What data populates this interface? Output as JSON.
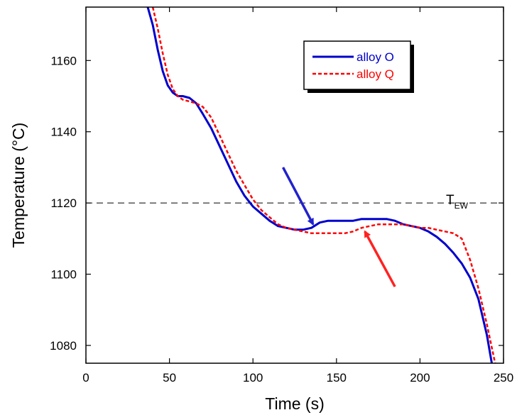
{
  "chart_data": {
    "type": "line",
    "title": "",
    "xlabel": "Time (s)",
    "ylabel": "Temperature (°C)",
    "xlim": [
      0,
      250
    ],
    "ylim": [
      1075,
      1175
    ],
    "xticks": [
      0,
      50,
      100,
      150,
      200,
      250
    ],
    "yticks": [
      1080,
      1100,
      1120,
      1140,
      1160
    ],
    "grid": false,
    "legend_position": "top-right",
    "reference_line": {
      "y": 1120,
      "label_main": "T",
      "label_sub": "EW",
      "style": "dashed",
      "color": "#000000"
    },
    "series": [
      {
        "name": "alloy O",
        "color": "#0000cc",
        "style": "solid",
        "x": [
          37,
          40,
          43,
          46,
          49,
          52,
          55,
          58,
          62,
          66,
          70,
          75,
          80,
          85,
          90,
          95,
          100,
          105,
          110,
          115,
          120,
          125,
          130,
          135,
          140,
          145,
          150,
          155,
          160,
          165,
          170,
          175,
          180,
          185,
          190,
          195,
          200,
          205,
          210,
          215,
          220,
          225,
          230,
          235,
          240,
          243
        ],
        "y": [
          1175,
          1170,
          1163,
          1157,
          1153,
          1151,
          1150,
          1150,
          1149.5,
          1148,
          1145,
          1141,
          1136,
          1131,
          1126,
          1122,
          1119,
          1117,
          1115,
          1113.5,
          1113,
          1112.5,
          1112.5,
          1113,
          1114.5,
          1115,
          1115,
          1115,
          1115,
          1115.5,
          1115.5,
          1115.5,
          1115.5,
          1115,
          1114,
          1113.5,
          1113,
          1112,
          1110.5,
          1108.5,
          1106,
          1103,
          1099,
          1093,
          1083,
          1075
        ]
      },
      {
        "name": "alloy Q",
        "color": "#ff0000",
        "style": "dashed",
        "x": [
          40,
          43,
          46,
          49,
          52,
          55,
          58,
          62,
          66,
          70,
          75,
          80,
          85,
          90,
          95,
          100,
          105,
          110,
          115,
          120,
          125,
          130,
          135,
          140,
          145,
          150,
          155,
          160,
          165,
          170,
          175,
          180,
          185,
          190,
          195,
          200,
          205,
          210,
          215,
          220,
          225,
          230,
          235,
          240,
          245
        ],
        "y": [
          1175,
          1169,
          1162,
          1156,
          1152,
          1150,
          1149,
          1148.5,
          1148,
          1147,
          1144,
          1139,
          1134,
          1129,
          1125,
          1121,
          1118,
          1116,
          1114,
          1113,
          1112.5,
          1112,
          1111.5,
          1111.5,
          1111.5,
          1111.5,
          1111.5,
          1112,
          1113,
          1113.5,
          1114,
          1114,
          1114,
          1114,
          1113.5,
          1113,
          1113,
          1112.5,
          1112,
          1111.5,
          1110,
          1104,
          1096,
          1086,
          1075
        ]
      }
    ],
    "annotations": [
      {
        "type": "arrow",
        "color": "#2222cc",
        "from": [
          118,
          1130
        ],
        "to": [
          136,
          1114
        ]
      },
      {
        "type": "arrow",
        "color": "#ff2222",
        "from": [
          185,
          1096.5
        ],
        "to": [
          167,
          1112
        ]
      }
    ]
  }
}
